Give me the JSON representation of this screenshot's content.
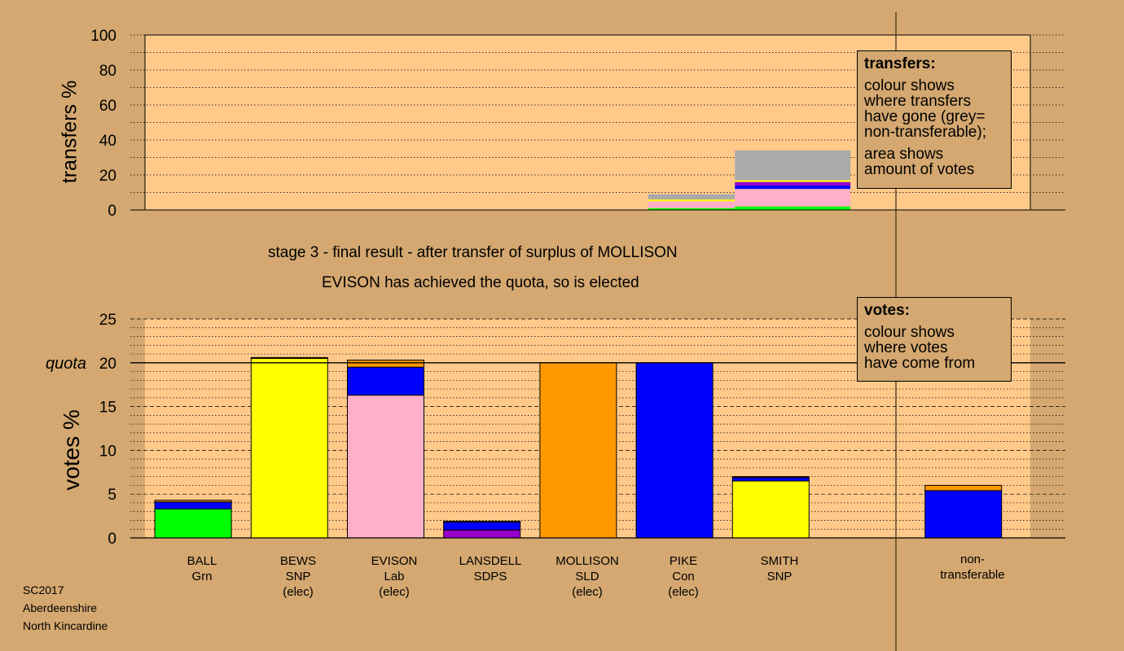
{
  "chart_data": [
    {
      "type": "bar",
      "panel": "transfers",
      "ylabel": "transfers %",
      "ylim": [
        0,
        100
      ],
      "yticks": [
        0,
        20,
        40,
        60,
        80,
        100
      ],
      "grid": true,
      "legend": {
        "title": "transfers:",
        "lines": [
          "colour shows",
          "where transfers",
          "have gone (grey=",
          "non-transferable);",
          "area shows",
          "amount of votes"
        ]
      },
      "segments": [
        {
          "x0": 5.23,
          "x1": 6.13,
          "parts": [
            {
              "color": "#00ff00",
              "value": 1
            },
            {
              "color": "#ffb0c8",
              "value": 4
            },
            {
              "color": "#ffff00",
              "value": 1
            },
            {
              "color": "#aaaaaa",
              "value": 3
            }
          ]
        },
        {
          "x0": 6.13,
          "x1": 7.33,
          "parts": [
            {
              "color": "#00ff00",
              "value": 2
            },
            {
              "color": "#ffb0c8",
              "value": 10
            },
            {
              "color": "#0000ff",
              "value": 2
            },
            {
              "color": "#9900cc",
              "value": 2
            },
            {
              "color": "#ffff00",
              "value": 1
            },
            {
              "color": "#aaaaaa",
              "value": 17
            }
          ]
        }
      ]
    },
    {
      "type": "bar",
      "panel": "votes",
      "title": "stage 3 - final result - after transfer of surplus of MOLLISON",
      "subtitle": "EVISON has achieved the quota, so is elected",
      "ylabel": "votes %",
      "ylim": [
        0,
        25
      ],
      "yticks": [
        0,
        5,
        10,
        15,
        20,
        25
      ],
      "quota": 20,
      "quota_label": "quota",
      "grid": true,
      "legend": {
        "title": "votes:",
        "lines": [
          "colour shows",
          "where votes",
          "have come from"
        ]
      },
      "categories": [
        {
          "lines": [
            "BALL",
            "Grn"
          ],
          "stack": [
            {
              "color": "#00ff00",
              "value": 3.3
            },
            {
              "color": "#0000ff",
              "value": 0.8
            },
            {
              "color": "#ff9900",
              "value": 0.2
            }
          ]
        },
        {
          "lines": [
            "BEWS",
            "SNP",
            "(elec)"
          ],
          "stack": [
            {
              "color": "#ffff00",
              "value": 20.5
            },
            {
              "color": "#ff9900",
              "value": 0.1
            }
          ]
        },
        {
          "lines": [
            "EVISON",
            "Lab",
            "(elec)"
          ],
          "stack": [
            {
              "color": "#ffb0c8",
              "value": 16.3
            },
            {
              "color": "#0000ff",
              "value": 3.2
            },
            {
              "color": "#ff9900",
              "value": 0.8
            }
          ]
        },
        {
          "lines": [
            "LANSDELL",
            "SDPS"
          ],
          "stack": [
            {
              "color": "#9900cc",
              "value": 0.9
            },
            {
              "color": "#0000ff",
              "value": 0.9
            },
            {
              "color": "#ff9900",
              "value": 0.1
            }
          ]
        },
        {
          "lines": [
            "MOLLISON",
            "SLD",
            "(elec)"
          ],
          "stack": [
            {
              "color": "#ff9900",
              "value": 20
            }
          ]
        },
        {
          "lines": [
            "PIKE",
            "Con",
            "(elec)"
          ],
          "stack": [
            {
              "color": "#0000ff",
              "value": 20
            }
          ]
        },
        {
          "lines": [
            "SMITH",
            "SNP"
          ],
          "stack": [
            {
              "color": "#ffff00",
              "value": 6.5
            },
            {
              "color": "#0000ff",
              "value": 0.4
            },
            {
              "color": "#ff9900",
              "value": 0.1
            }
          ]
        },
        {
          "lines": [
            "non-",
            "transferable"
          ],
          "stack": [
            {
              "color": "#0000ff",
              "value": 5.4
            },
            {
              "color": "#ff9900",
              "value": 0.6
            }
          ]
        }
      ]
    }
  ],
  "footer": [
    "SC2017",
    "Aberdeenshire",
    "North Kincardine"
  ],
  "colors": {
    "background": "#d4a870",
    "plot": "#ffc98a"
  }
}
